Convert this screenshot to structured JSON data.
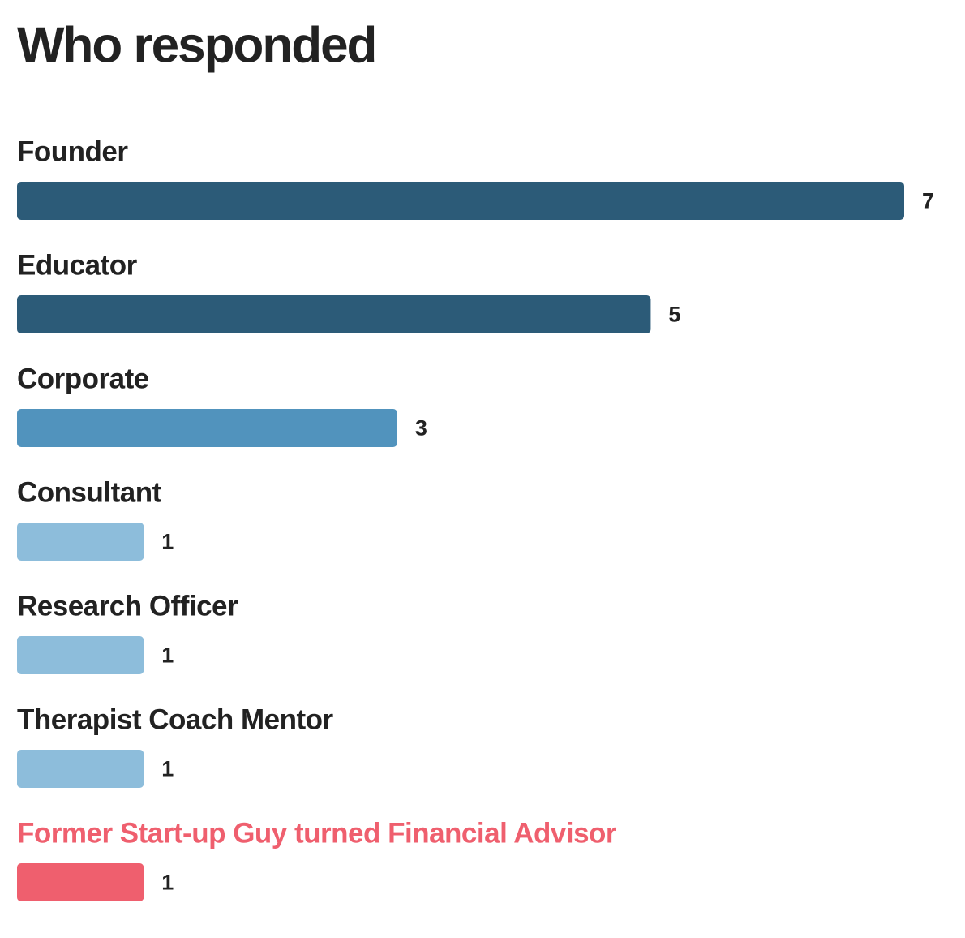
{
  "chart_data": {
    "type": "bar",
    "orientation": "horizontal",
    "title": "Who responded",
    "categories": [
      "Founder",
      "Educator",
      "Corporate",
      "Consultant",
      "Research Officer",
      "Therapist Coach Mentor",
      "Former Start-up Guy turned Financial Advisor"
    ],
    "values": [
      7,
      5,
      3,
      1,
      1,
      1,
      1
    ],
    "colors": [
      "#2c5b78",
      "#2c5b78",
      "#5193bd",
      "#8dbddb",
      "#8dbddb",
      "#8dbddb",
      "#ef5f6e"
    ],
    "label_colors": [
      "#222222",
      "#222222",
      "#222222",
      "#222222",
      "#222222",
      "#222222",
      "#ef5f6e"
    ]
  }
}
